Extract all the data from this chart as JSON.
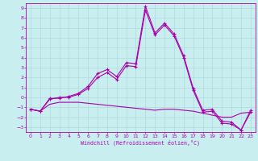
{
  "xlabel": "Windchill (Refroidissement éolien,°C)",
  "background_color": "#c8eef0",
  "grid_color": "#b0d8da",
  "line_color": "#aa00aa",
  "xlim": [
    -0.5,
    23.5
  ],
  "ylim": [
    -3.5,
    9.5
  ],
  "xticks": [
    0,
    1,
    2,
    3,
    4,
    5,
    6,
    7,
    8,
    9,
    10,
    11,
    12,
    13,
    14,
    15,
    16,
    17,
    18,
    19,
    20,
    21,
    22,
    23
  ],
  "yticks": [
    -3,
    -2,
    -1,
    0,
    1,
    2,
    3,
    4,
    5,
    6,
    7,
    8,
    9
  ],
  "series1_x": [
    0,
    1,
    2,
    3,
    4,
    5,
    6,
    7,
    8,
    9,
    10,
    11,
    12,
    13,
    14,
    15,
    16,
    17,
    18,
    19,
    20,
    21,
    22,
    23
  ],
  "series1_y": [
    -1.2,
    -1.4,
    -0.1,
    -0.1,
    0.1,
    0.4,
    1.1,
    2.4,
    2.8,
    2.1,
    3.5,
    3.4,
    9.2,
    6.5,
    7.5,
    6.4,
    4.2,
    0.9,
    -1.3,
    -1.2,
    -2.4,
    -2.5,
    -3.3,
    -1.3
  ],
  "series2_x": [
    0,
    1,
    2,
    3,
    4,
    5,
    6,
    7,
    8,
    9,
    10,
    11,
    12,
    13,
    14,
    15,
    16,
    17,
    18,
    19,
    20,
    21,
    22,
    23
  ],
  "series2_y": [
    -1.2,
    -1.4,
    -0.2,
    0.0,
    0.0,
    0.3,
    0.9,
    2.0,
    2.5,
    1.8,
    3.2,
    3.1,
    8.8,
    6.3,
    7.3,
    6.2,
    4.0,
    0.7,
    -1.5,
    -1.4,
    -2.6,
    -2.7,
    -3.3,
    -1.5
  ],
  "series3_x": [
    0,
    1,
    2,
    3,
    4,
    5,
    6,
    7,
    8,
    9,
    10,
    11,
    12,
    13,
    14,
    15,
    16,
    17,
    18,
    19,
    20,
    21,
    22,
    23
  ],
  "series3_y": [
    -1.2,
    -1.4,
    -0.7,
    -0.5,
    -0.5,
    -0.5,
    -0.6,
    -0.7,
    -0.8,
    -0.9,
    -1.0,
    -1.1,
    -1.2,
    -1.3,
    -1.2,
    -1.2,
    -1.3,
    -1.4,
    -1.6,
    -1.8,
    -2.0,
    -2.0,
    -1.6,
    -1.5
  ]
}
